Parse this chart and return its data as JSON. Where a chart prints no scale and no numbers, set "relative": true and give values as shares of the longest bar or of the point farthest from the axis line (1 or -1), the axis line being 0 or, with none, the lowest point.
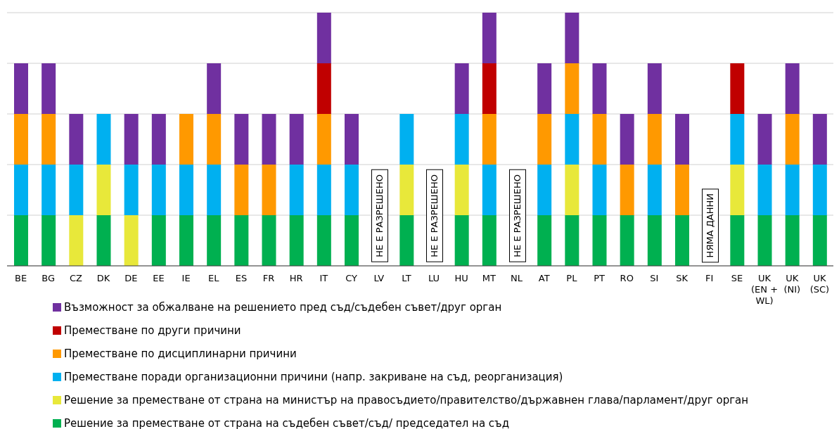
{
  "chart_data": {
    "type": "bar",
    "stacked": true,
    "relative": true,
    "grid": "y",
    "legend": "bottom",
    "categories": [
      "BE",
      "BG",
      "CZ",
      "DK",
      "DE",
      "EE",
      "IE",
      "EL",
      "ES",
      "FR",
      "HR",
      "IT",
      "CY",
      "LV",
      "LT",
      "LU",
      "HU",
      "MT",
      "NL",
      "AT",
      "PL",
      "PT",
      "RO",
      "SI",
      "SK",
      "FI",
      "SE",
      "UK (EN + WL)",
      "UK (NI)",
      "UK (SC)"
    ],
    "series": [
      {
        "name": "Решение за преместване от страна на съдебен съвет/съд/ председател на съд",
        "color": "#00b050",
        "values": [
          0.2,
          0.2,
          null,
          0.2,
          null,
          0.2,
          0.2,
          0.2,
          0.2,
          0.2,
          0.2,
          0.2,
          0.2,
          null,
          0.2,
          null,
          0.2,
          0.2,
          null,
          0.2,
          0.2,
          0.2,
          0.2,
          0.2,
          0.2,
          null,
          0.2,
          0.2,
          0.2,
          0.2
        ]
      },
      {
        "name": "Решение за преместване от страна на министър на правосъдието/правителство/държавнен глава/парламент/друг орган",
        "color": "#e8e83a",
        "values": [
          null,
          null,
          0.2,
          0.2,
          0.2,
          null,
          null,
          null,
          null,
          null,
          null,
          null,
          null,
          null,
          0.2,
          null,
          0.2,
          null,
          null,
          null,
          0.2,
          null,
          null,
          null,
          null,
          null,
          0.2,
          null,
          null,
          null
        ]
      },
      {
        "name": "Преместване поради организационни причини (напр. закриване на съд, реорганизация)",
        "color": "#00b0f0",
        "values": [
          0.2,
          0.2,
          0.2,
          0.2,
          0.2,
          0.2,
          0.2,
          0.2,
          null,
          null,
          0.2,
          0.2,
          0.2,
          null,
          0.2,
          null,
          0.2,
          0.2,
          null,
          0.2,
          0.2,
          0.2,
          null,
          0.2,
          null,
          null,
          0.2,
          0.2,
          0.2,
          0.2
        ]
      },
      {
        "name": "Преместване по дисциплинарни причини",
        "color": "#ff9900",
        "values": [
          0.2,
          0.2,
          null,
          null,
          null,
          null,
          0.2,
          0.2,
          0.2,
          0.2,
          null,
          0.2,
          null,
          null,
          null,
          null,
          null,
          0.2,
          null,
          0.2,
          0.2,
          0.2,
          0.2,
          0.2,
          0.2,
          null,
          null,
          null,
          0.2,
          null
        ]
      },
      {
        "name": "Преместване по други причини",
        "color": "#c00000",
        "values": [
          null,
          null,
          null,
          null,
          null,
          null,
          null,
          null,
          null,
          null,
          null,
          0.2,
          null,
          null,
          null,
          null,
          null,
          0.2,
          null,
          null,
          null,
          null,
          null,
          null,
          null,
          null,
          0.2,
          null,
          null,
          null
        ]
      },
      {
        "name": "Възможност за обжалване на решението пред съд/съдебен съвет/друг орган",
        "color": "#7030a0",
        "values": [
          0.2,
          0.2,
          0.2,
          null,
          0.2,
          0.2,
          null,
          0.2,
          0.2,
          0.2,
          0.2,
          0.2,
          0.2,
          null,
          null,
          null,
          0.2,
          0.2,
          null,
          0.2,
          0.2,
          0.2,
          0.2,
          0.2,
          0.2,
          null,
          null,
          0.2,
          0.2,
          0.2
        ]
      }
    ],
    "annotations": [
      "НЕ Е РАЗРЕШЕНО",
      "НЕ Е РАЗРЕШЕНО",
      "НЕ Е РАЗРЕШЕНО",
      "НЯМА ДАННИ"
    ]
  }
}
